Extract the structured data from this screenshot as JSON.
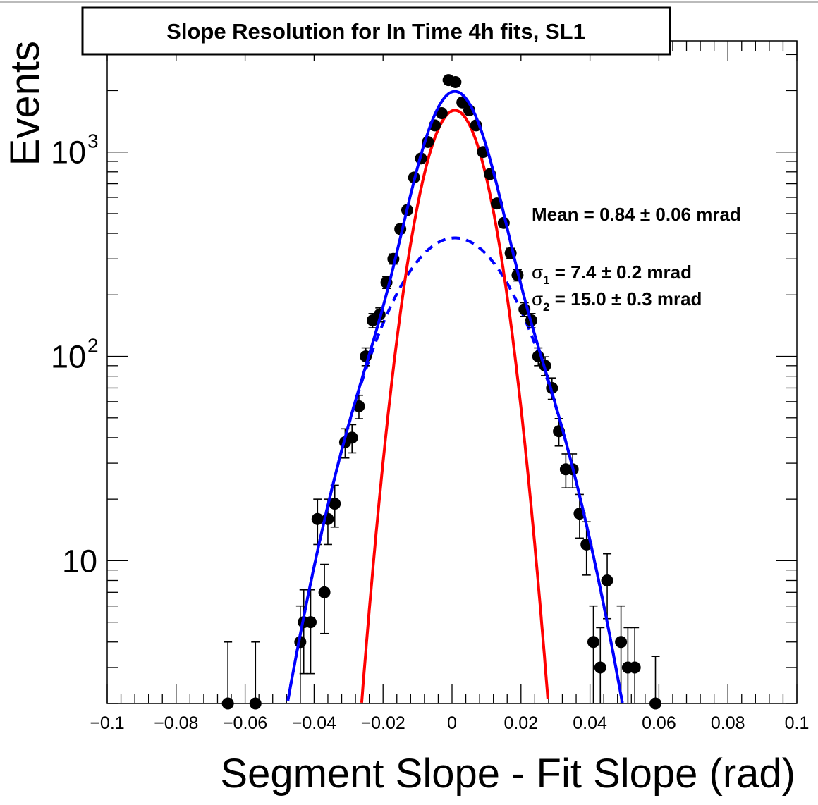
{
  "chart_data": {
    "type": "scatter",
    "title": "Slope Resolution for In Time 4h fits, SL1",
    "xlabel": "Segment Slope - Fit Slope (rad)",
    "ylabel": "Events",
    "yscale": "log",
    "xlim": [
      -0.1,
      0.1
    ],
    "ylim": [
      2,
      3500
    ],
    "xtick_values": [
      -0.1,
      -0.08,
      -0.06,
      -0.04,
      -0.02,
      0,
      0.02,
      0.04,
      0.06,
      0.08,
      0.1
    ],
    "xtick_labels": [
      "−0.1",
      "−0.08",
      "−0.06",
      "−0.04",
      "−0.02",
      "0",
      "0.02",
      "0.04",
      "0.06",
      "0.08",
      "0.1"
    ],
    "ytick_values": [
      10,
      100,
      1000
    ],
    "ytick_labels": [
      {
        "base": "10",
        "exp": ""
      },
      {
        "base": "10",
        "exp": "2"
      },
      {
        "base": "10",
        "exp": "3"
      }
    ],
    "annotations": {
      "mean": "Mean = 0.84 ± 0.06 mrad",
      "sigma1": {
        "symbol": "σ",
        "sub": "1",
        "text": " =  7.4 ± 0.2 mrad"
      },
      "sigma2": {
        "symbol": "σ",
        "sub": "2",
        "text": " = 15.0  ± 0.3 mrad"
      }
    },
    "data_points": {
      "name": "data",
      "color": "#000000",
      "points": [
        {
          "x": -0.065,
          "y": 2,
          "err": 2
        },
        {
          "x": -0.057,
          "y": 2,
          "err": 2
        },
        {
          "x": -0.044,
          "y": 4,
          "err": 2
        },
        {
          "x": -0.043,
          "y": 5,
          "err": 2.2
        },
        {
          "x": -0.041,
          "y": 5,
          "err": 2.2
        },
        {
          "x": -0.039,
          "y": 16,
          "err": 4
        },
        {
          "x": -0.037,
          "y": 7,
          "err": 2.6
        },
        {
          "x": -0.036,
          "y": 16,
          "err": 4
        },
        {
          "x": -0.034,
          "y": 19,
          "err": 4.4
        },
        {
          "x": -0.031,
          "y": 38,
          "err": 6.2
        },
        {
          "x": -0.029,
          "y": 40,
          "err": 6.3
        },
        {
          "x": -0.027,
          "y": 57,
          "err": 7.5
        },
        {
          "x": -0.025,
          "y": 100,
          "err": 10
        },
        {
          "x": -0.023,
          "y": 150,
          "err": 12
        },
        {
          "x": -0.021,
          "y": 160,
          "err": 12.6
        },
        {
          "x": -0.019,
          "y": 230,
          "err": 15
        },
        {
          "x": -0.017,
          "y": 300,
          "err": 17
        },
        {
          "x": -0.015,
          "y": 420,
          "err": 20
        },
        {
          "x": -0.013,
          "y": 520,
          "err": 23
        },
        {
          "x": -0.011,
          "y": 750,
          "err": 27
        },
        {
          "x": -0.009,
          "y": 930,
          "err": 30
        },
        {
          "x": -0.007,
          "y": 1120,
          "err": 33
        },
        {
          "x": -0.005,
          "y": 1350,
          "err": 37
        },
        {
          "x": -0.003,
          "y": 1550,
          "err": 39
        },
        {
          "x": -0.001,
          "y": 2250,
          "err": 47
        },
        {
          "x": 0.001,
          "y": 2200,
          "err": 47
        },
        {
          "x": 0.003,
          "y": 1750,
          "err": 42
        },
        {
          "x": 0.005,
          "y": 1600,
          "err": 40
        },
        {
          "x": 0.007,
          "y": 1350,
          "err": 37
        },
        {
          "x": 0.009,
          "y": 1000,
          "err": 32
        },
        {
          "x": 0.011,
          "y": 780,
          "err": 28
        },
        {
          "x": 0.013,
          "y": 560,
          "err": 24
        },
        {
          "x": 0.015,
          "y": 450,
          "err": 21
        },
        {
          "x": 0.017,
          "y": 320,
          "err": 18
        },
        {
          "x": 0.019,
          "y": 250,
          "err": 16
        },
        {
          "x": 0.021,
          "y": 170,
          "err": 13
        },
        {
          "x": 0.023,
          "y": 150,
          "err": 12
        },
        {
          "x": 0.025,
          "y": 100,
          "err": 10
        },
        {
          "x": 0.027,
          "y": 90,
          "err": 9.5
        },
        {
          "x": 0.029,
          "y": 70,
          "err": 8.4
        },
        {
          "x": 0.031,
          "y": 43,
          "err": 6.6
        },
        {
          "x": 0.033,
          "y": 28,
          "err": 5.3
        },
        {
          "x": 0.035,
          "y": 28,
          "err": 5.3
        },
        {
          "x": 0.037,
          "y": 17,
          "err": 4.1
        },
        {
          "x": 0.039,
          "y": 12,
          "err": 3.5
        },
        {
          "x": 0.041,
          "y": 4,
          "err": 2
        },
        {
          "x": 0.043,
          "y": 3,
          "err": 1.7
        },
        {
          "x": 0.045,
          "y": 8,
          "err": 2.8
        },
        {
          "x": 0.049,
          "y": 4,
          "err": 2
        },
        {
          "x": 0.051,
          "y": 3,
          "err": 1.7
        },
        {
          "x": 0.053,
          "y": 3,
          "err": 1.7
        },
        {
          "x": 0.059,
          "y": 2,
          "err": 1.4
        }
      ]
    },
    "series": [
      {
        "name": "narrow-gaussian",
        "style": "solid",
        "color": "#ff0000",
        "function": "gaussian",
        "amplitude": 1600,
        "mean": 0.00084,
        "sigma": 0.0074
      },
      {
        "name": "wide-gaussian",
        "style": "dashed",
        "color": "#0000ff",
        "function": "gaussian",
        "amplitude": 380,
        "mean": 0.00084,
        "sigma": 0.015
      },
      {
        "name": "total-fit",
        "style": "solid",
        "color": "#0000ff",
        "function": "sum"
      }
    ]
  }
}
